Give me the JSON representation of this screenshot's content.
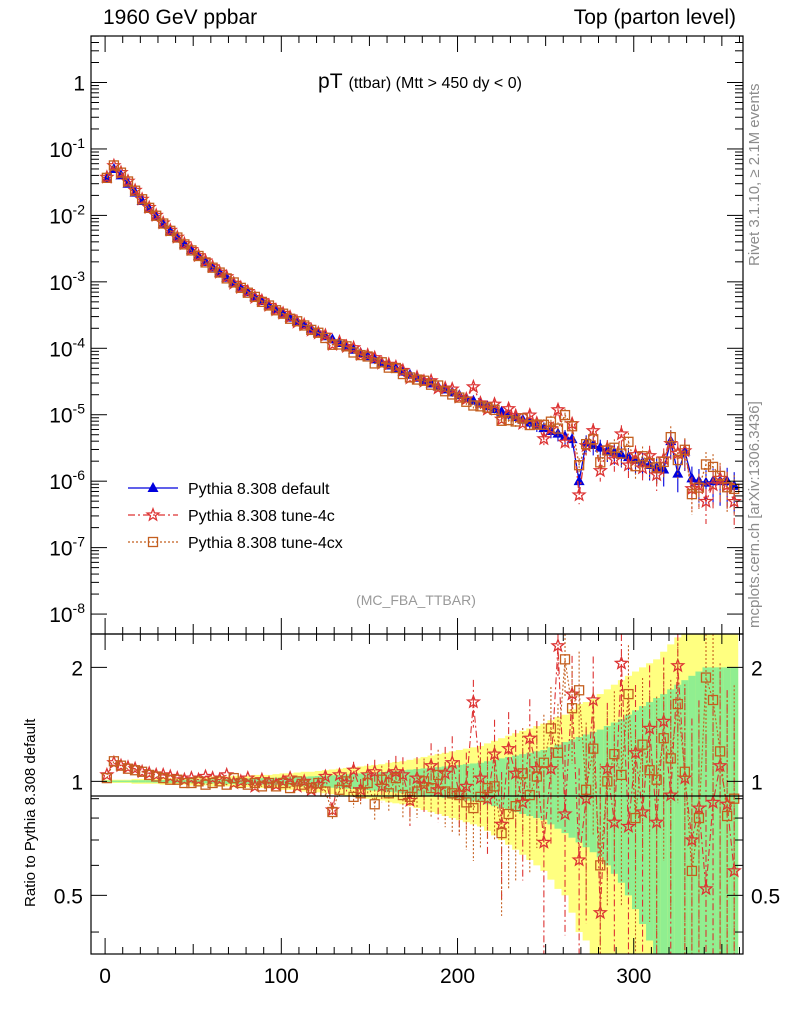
{
  "header": {
    "left": "1960 GeV ppbar",
    "right": "Top (parton level)"
  },
  "side": {
    "top": "Rivet 3.1.10, ≥ 2.1M events",
    "bottom": "mcplots.cern.ch [arXiv:1306.3436]"
  },
  "watermark": "(MC_FBA_TTBAR)",
  "title": {
    "main": "pT",
    "sub": "(ttbar) (Mtt > 450 dy < 0)"
  },
  "ratio_ylabel": "Ratio to Pythia 8.308 default",
  "legend": [
    {
      "label": "Pythia 8.308 default",
      "color": "#0000dd",
      "marker": "triangle",
      "dash": "solid"
    },
    {
      "label": "Pythia 8.308 tune-4c",
      "color": "#dd3333",
      "marker": "star",
      "dash": "dashdot"
    },
    {
      "label": "Pythia 8.308 tune-4cx",
      "color": "#c45f1f",
      "marker": "square",
      "dash": "dotted"
    }
  ],
  "colors": {
    "band_yellow": "#ffff80",
    "band_green": "#90ee90"
  },
  "chart_data": {
    "type": "line",
    "x_range": [
      -8,
      362
    ],
    "y_log_range": [
      -8.3,
      0.7
    ],
    "y_tick_labels": [
      "1",
      "10^-1",
      "10^-2",
      "10^-3",
      "10^-4",
      "10^-5",
      "10^-6",
      "10^-7",
      "10^-8"
    ],
    "x_tick_labels": [
      "0",
      "100",
      "200",
      "300"
    ],
    "ratio_range": [
      0.35,
      2.45
    ],
    "ratio_tick_labels": [
      "0.5",
      "1",
      "2"
    ],
    "x": [
      1,
      5,
      9,
      13,
      17,
      21,
      25,
      29,
      33,
      37,
      41,
      45,
      49,
      53,
      57,
      61,
      65,
      69,
      73,
      77,
      81,
      85,
      89,
      93,
      97,
      101,
      105,
      109,
      113,
      117,
      121,
      125,
      129,
      133,
      137,
      141,
      145,
      149,
      153,
      157,
      161,
      165,
      169,
      173,
      177,
      181,
      185,
      189,
      193,
      197,
      201,
      205,
      209,
      213,
      217,
      221,
      225,
      229,
      233,
      237,
      241,
      245,
      249,
      253,
      257,
      261,
      265,
      269,
      273,
      277,
      281,
      285,
      289,
      293,
      297,
      301,
      305,
      309,
      313,
      317,
      321,
      325,
      329,
      333,
      337,
      341,
      345,
      349,
      353,
      357
    ],
    "series": [
      {
        "name": "Pythia 8.308 default",
        "values": [
          0.036,
          0.05,
          0.04,
          0.03,
          0.022,
          0.0165,
          0.0125,
          0.0096,
          0.0074,
          0.0058,
          0.0046,
          0.0037,
          0.003,
          0.00245,
          0.002,
          0.00165,
          0.00138,
          0.00115,
          0.00096,
          0.00082,
          0.0007,
          0.0006,
          0.000515,
          0.000445,
          0.000385,
          0.000335,
          0.00029,
          0.000255,
          0.000225,
          0.000197,
          0.000173,
          0.000152,
          0.000136,
          0.00012,
          0.000107,
          9.5e-05,
          8.5e-05,
          7.6e-05,
          6.8e-05,
          6.1e-05,
          5.5e-05,
          4.95e-05,
          4.45e-05,
          4e-05,
          3.6e-05,
          3.25e-05,
          2.95e-05,
          2.65e-05,
          2.4e-05,
          2.17e-05,
          1.97e-05,
          1.78e-05,
          1.62e-05,
          1.47e-05,
          1.34e-05,
          1.22e-05,
          1.11e-05,
          1.01e-05,
          9.2e-06,
          8.4e-06,
          7.6e-06,
          6.9e-06,
          6.3e-06,
          5.7e-06,
          5.2e-06,
          4.7e-06,
          4.3e-06,
          1e-06,
          3.8e-06,
          3.5e-06,
          3.2e-06,
          2.9e-06,
          2.7e-06,
          2.5e-06,
          2.3e-06,
          2.1e-06,
          1.9e-06,
          1.75e-06,
          1.6e-06,
          1.5e-06,
          4e-06,
          1.3e-06,
          2.8e-06,
          1.1e-06,
          1e-06,
          9.5e-07,
          1e-06,
          1e-06,
          1e-06,
          8.5e-07
        ]
      },
      {
        "name": "Pythia 8.308 tune-4c",
        "ratio": [
          1.04,
          1.12,
          1.1,
          1.09,
          1.08,
          1.06,
          1.05,
          1.04,
          1.04,
          1.03,
          1.02,
          1.01,
          1.02,
          1.01,
          1.03,
          1.02,
          1.01,
          1.04,
          0.99,
          1.0,
          1.02,
          0.97,
          1.01,
          0.99,
          0.98,
          1.0,
          1.02,
          0.97,
          1.0,
          0.95,
          0.98,
          1.03,
          0.84,
          1.04,
          0.99,
          1.07,
          0.95,
          1.04,
          1.06,
          0.97,
          1.04,
          1.06,
          1.04,
          0.89,
          1.02,
          0.98,
          1.1,
          0.95,
          1.05,
          1.12,
          0.93,
          0.97,
          1.62,
          1.02,
          0.9,
          1.18,
          0.77,
          1.22,
          1.05,
          0.88,
          1.3,
          1.08,
          0.69,
          1.08,
          2.28,
          0.82,
          1.7,
          0.62,
          0.9,
          1.64,
          0.45,
          1.08,
          0.78,
          2.05,
          0.76,
          1.19,
          0.83,
          1.38,
          0.78,
          1.44,
          0.92,
          2.02,
          1.02,
          0.7,
          0.85,
          0.52,
          0.88,
          1.1,
          0.87,
          0.58
        ]
      },
      {
        "name": "Pythia 8.308 tune-4cx",
        "ratio": [
          1.02,
          1.13,
          1.1,
          1.08,
          1.07,
          1.06,
          1.04,
          1.03,
          1.02,
          1.01,
          1.01,
          0.99,
          0.99,
          1.0,
          0.98,
          0.99,
          1.0,
          0.98,
          1.02,
          0.99,
          0.98,
          0.99,
          0.97,
          0.99,
          0.97,
          0.99,
          0.96,
          1.0,
          0.98,
          0.96,
          0.99,
          0.94,
          0.83,
          0.95,
          1.0,
          0.91,
          0.93,
          0.99,
          0.87,
          1.01,
          0.93,
          1.02,
          0.92,
          0.91,
          0.94,
          1.0,
          0.96,
          1.04,
          0.94,
          0.93,
          0.92,
          0.88,
          0.85,
          0.91,
          0.96,
          0.97,
          0.73,
          0.82,
          0.86,
          1.05,
          0.92,
          1.03,
          1.12,
          1.38,
          1.19,
          2.1,
          1.56,
          1.74,
          0.95,
          1.22,
          0.6,
          1.0,
          1.18,
          1.04,
          1.7,
          0.8,
          1.25,
          1.07,
          1.01,
          1.3,
          1.15,
          1.6,
          1.06,
          0.58,
          0.8,
          1.88,
          1.64,
          1.2,
          0.81,
          0.9
        ]
      }
    ],
    "bands": {
      "yellow_halfwidth": [
        0.01,
        0.01,
        0.01,
        0.01,
        0.015,
        0.015,
        0.015,
        0.015,
        0.02,
        0.02,
        0.02,
        0.02,
        0.025,
        0.025,
        0.025,
        0.03,
        0.03,
        0.03,
        0.035,
        0.035,
        0.035,
        0.04,
        0.04,
        0.04,
        0.045,
        0.05,
        0.05,
        0.055,
        0.06,
        0.06,
        0.065,
        0.07,
        0.075,
        0.08,
        0.085,
        0.09,
        0.095,
        0.1,
        0.105,
        0.11,
        0.12,
        0.125,
        0.13,
        0.14,
        0.15,
        0.16,
        0.17,
        0.18,
        0.19,
        0.2,
        0.21,
        0.22,
        0.23,
        0.24,
        0.26,
        0.28,
        0.3,
        0.32,
        0.34,
        0.36,
        0.38,
        0.4,
        0.42,
        0.45,
        0.48,
        0.5,
        0.55,
        0.6,
        0.62,
        0.65,
        0.7,
        0.75,
        0.8,
        0.85,
        0.9,
        0.95,
        1.0,
        1.05,
        1.1,
        1.2,
        1.3,
        1.4,
        1.5,
        1.6,
        1.7,
        1.8,
        1.9,
        2.0,
        2.0,
        2.0
      ],
      "green_halfwidth": [
        0.005,
        0.005,
        0.005,
        0.005,
        0.007,
        0.007,
        0.007,
        0.008,
        0.008,
        0.009,
        0.01,
        0.01,
        0.011,
        0.012,
        0.012,
        0.013,
        0.014,
        0.015,
        0.016,
        0.017,
        0.018,
        0.019,
        0.02,
        0.021,
        0.022,
        0.024,
        0.025,
        0.027,
        0.029,
        0.031,
        0.033,
        0.035,
        0.038,
        0.04,
        0.043,
        0.046,
        0.049,
        0.052,
        0.055,
        0.058,
        0.062,
        0.066,
        0.07,
        0.074,
        0.078,
        0.082,
        0.086,
        0.09,
        0.095,
        0.1,
        0.105,
        0.11,
        0.115,
        0.12,
        0.13,
        0.14,
        0.15,
        0.16,
        0.17,
        0.18,
        0.19,
        0.2,
        0.21,
        0.23,
        0.25,
        0.27,
        0.29,
        0.31,
        0.33,
        0.35,
        0.37,
        0.4,
        0.43,
        0.46,
        0.5,
        0.54,
        0.58,
        0.62,
        0.66,
        0.7,
        0.75,
        0.8,
        0.85,
        0.9,
        0.95,
        1.0,
        1.0,
        1.0,
        1.0,
        1.0
      ]
    }
  }
}
